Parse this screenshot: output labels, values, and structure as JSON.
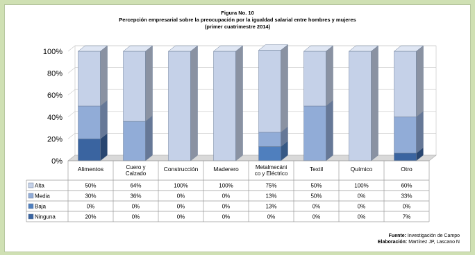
{
  "chart_data": {
    "type": "bar",
    "stacked": true,
    "percent": true,
    "title_line1": "Figura No. 10",
    "title_line2": "Percepción empresarial sobre la preocupación por la igualdad salarial  entre hombres y mujeres",
    "title_line3": "(primer cuatrimestre 2014)",
    "categories": [
      "Alimentos",
      "Cuero y Calzado",
      "Construcción",
      "Maderero",
      "Metalmecánico y Eléctrico",
      "Textil",
      "Químico",
      "Otro"
    ],
    "category_lines": [
      [
        "Alimentos"
      ],
      [
        "Cuero y",
        "Calzado"
      ],
      [
        "Construcción"
      ],
      [
        "Maderero"
      ],
      [
        "Metalmecáni",
        "co y Eléctrico"
      ],
      [
        "Textil"
      ],
      [
        "Químico"
      ],
      [
        "Otro"
      ]
    ],
    "yticks": [
      "0%",
      "20%",
      "40%",
      "60%",
      "80%",
      "100%"
    ],
    "ylim": [
      0,
      100
    ],
    "series": [
      {
        "name": "Alta",
        "values": [
          50,
          64,
          100,
          100,
          75,
          50,
          100,
          60
        ],
        "labels": [
          "50%",
          "64%",
          "100%",
          "100%",
          "75%",
          "50%",
          "100%",
          "60%"
        ],
        "color": "#c5d1e8"
      },
      {
        "name": "Media",
        "values": [
          30,
          36,
          0,
          0,
          13,
          50,
          0,
          33
        ],
        "labels": [
          "30%",
          "36%",
          "0%",
          "0%",
          "13%",
          "50%",
          "0%",
          "33%"
        ],
        "color": "#91acd7"
      },
      {
        "name": "Baja",
        "values": [
          0,
          0,
          0,
          0,
          13,
          0,
          0,
          0
        ],
        "labels": [
          "0%",
          "0%",
          "0%",
          "0%",
          "13%",
          "0%",
          "0%",
          "0%"
        ],
        "color": "#4f7fbe"
      },
      {
        "name": "Ninguna",
        "values": [
          20,
          0,
          0,
          0,
          0,
          0,
          0,
          7
        ],
        "labels": [
          "20%",
          "0%",
          "0%",
          "0%",
          "0%",
          "0%",
          "0%",
          "7%"
        ],
        "color": "#3a64a0"
      }
    ]
  },
  "footer": {
    "source_label": "Fuente:",
    "source_text": "Investigación de Campo",
    "author_label": "Elaboración:",
    "author_text": "Martínez JP, Lascano N"
  }
}
